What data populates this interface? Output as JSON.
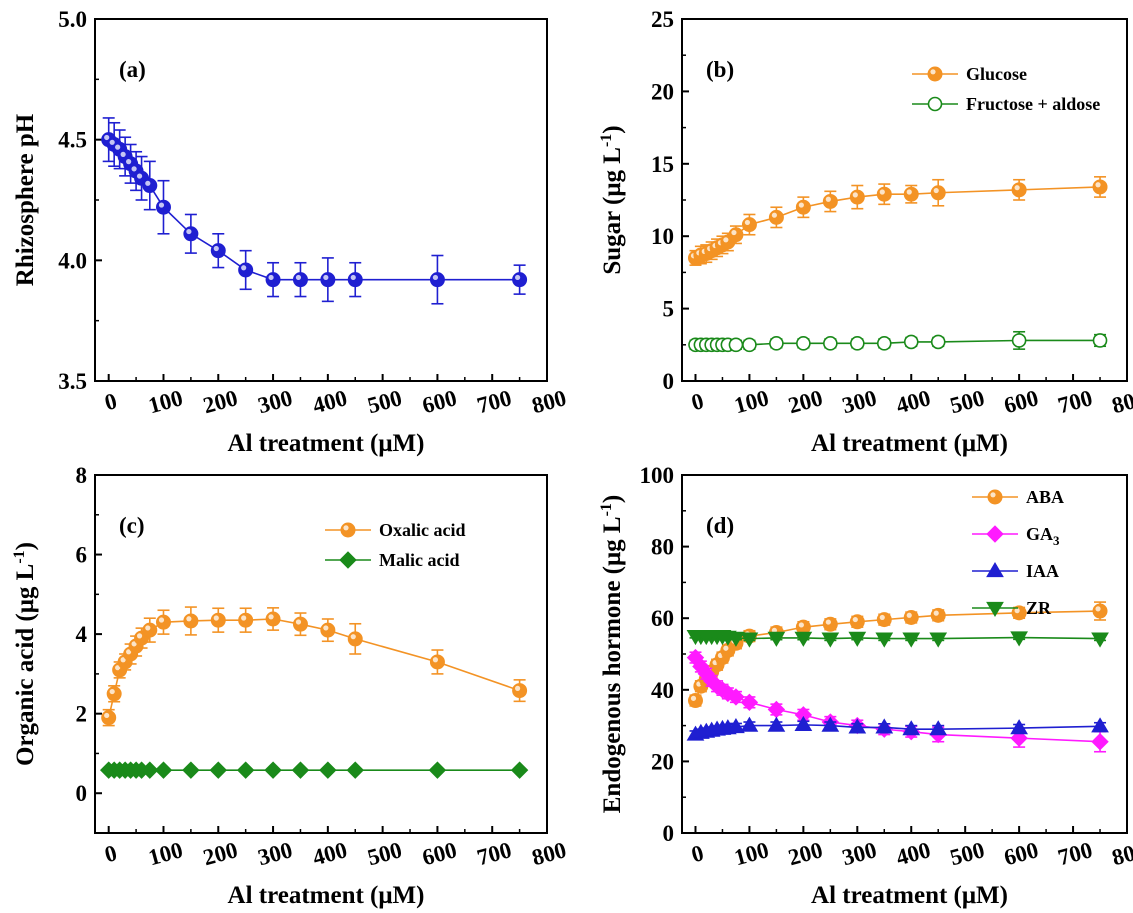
{
  "chart_data": [
    {
      "id": "a",
      "type": "line",
      "panel_label": "(a)",
      "xlabel": "Al treatment (μM)",
      "ylabel": "Rhizosphere pH",
      "ylabel_sup": "",
      "ylabel_tail": "",
      "xlim": [
        -25,
        800
      ],
      "ylim": [
        3.5,
        5.0
      ],
      "xticks": [
        0,
        100,
        200,
        300,
        400,
        500,
        600,
        700,
        800
      ],
      "yticks": [
        3.5,
        4.0,
        4.5,
        5.0
      ],
      "ytick_labels": [
        "3.5",
        "4.0",
        "4.5",
        "5.0"
      ],
      "legend_position": "none",
      "series": [
        {
          "color": "#1f1fd1",
          "marker": "circle-filled",
          "x": [
            0,
            10,
            20,
            30,
            40,
            50,
            60,
            75,
            100,
            150,
            200,
            250,
            300,
            350,
            400,
            450,
            600,
            750
          ],
          "y": [
            4.5,
            4.48,
            4.46,
            4.43,
            4.4,
            4.37,
            4.34,
            4.31,
            4.22,
            4.11,
            4.04,
            3.96,
            3.92,
            3.92,
            3.92,
            3.92,
            3.92,
            3.92
          ],
          "err": [
            0.09,
            0.09,
            0.08,
            0.08,
            0.08,
            0.08,
            0.09,
            0.1,
            0.11,
            0.08,
            0.07,
            0.08,
            0.07,
            0.07,
            0.09,
            0.07,
            0.1,
            0.06
          ]
        }
      ]
    },
    {
      "id": "b",
      "type": "line",
      "panel_label": "(b)",
      "xlabel": "Al treatment (μM)",
      "ylabel": "Sugar (μg L",
      "ylabel_sup": "-1",
      "ylabel_tail": ")",
      "xlim": [
        -25,
        800
      ],
      "ylim": [
        0,
        25
      ],
      "xticks": [
        0,
        100,
        200,
        300,
        400,
        500,
        600,
        700,
        800
      ],
      "yticks": [
        0,
        5,
        10,
        15,
        20,
        25
      ],
      "ytick_labels": [
        "0",
        "5",
        "10",
        "15",
        "20",
        "25"
      ],
      "legend_position": "top-right",
      "series": [
        {
          "name": "Glucose",
          "color": "#f39325",
          "marker": "circle-filled",
          "x": [
            0,
            10,
            20,
            30,
            40,
            50,
            60,
            75,
            100,
            150,
            200,
            250,
            300,
            350,
            400,
            450,
            600,
            750
          ],
          "y": [
            8.5,
            8.7,
            8.8,
            9.0,
            9.2,
            9.4,
            9.6,
            10.1,
            10.8,
            11.3,
            12.0,
            12.4,
            12.7,
            12.9,
            12.9,
            13.0,
            13.2,
            13.4
          ],
          "err": [
            0.5,
            0.6,
            0.6,
            0.6,
            0.6,
            0.6,
            0.6,
            0.6,
            0.7,
            0.7,
            0.7,
            0.7,
            0.8,
            0.7,
            0.6,
            0.9,
            0.7,
            0.7
          ]
        },
        {
          "name": "Fructose + aldose",
          "color": "#1a8a1a",
          "marker": "circle-open",
          "x": [
            0,
            10,
            20,
            30,
            40,
            50,
            60,
            75,
            100,
            150,
            200,
            250,
            300,
            350,
            400,
            450,
            600,
            750
          ],
          "y": [
            2.5,
            2.5,
            2.5,
            2.5,
            2.5,
            2.5,
            2.5,
            2.5,
            2.5,
            2.6,
            2.6,
            2.6,
            2.6,
            2.6,
            2.7,
            2.7,
            2.8,
            2.8
          ],
          "err": [
            0.3,
            0.3,
            0.3,
            0.3,
            0.3,
            0.3,
            0.3,
            0.3,
            0.3,
            0.3,
            0.3,
            0.3,
            0.3,
            0.3,
            0.3,
            0.3,
            0.6,
            0.4
          ]
        }
      ]
    },
    {
      "id": "c",
      "type": "line",
      "panel_label": "(c)",
      "xlabel": "Al treatment  (μM)",
      "ylabel": "Organic acid (μg L",
      "ylabel_sup": "-1",
      "ylabel_tail": ")",
      "xlim": [
        -25,
        800
      ],
      "ylim": [
        -1,
        8
      ],
      "xticks": [
        0,
        100,
        200,
        300,
        400,
        500,
        600,
        700,
        800
      ],
      "yticks": [
        0,
        2,
        4,
        6,
        8
      ],
      "ytick_labels": [
        "0",
        "2",
        "4",
        "6",
        "8"
      ],
      "legend_position": "top-right",
      "series": [
        {
          "name": "Oxalic acid",
          "color": "#f39325",
          "marker": "circle-filled",
          "x": [
            0,
            10,
            20,
            30,
            40,
            50,
            60,
            75,
            100,
            150,
            200,
            250,
            300,
            350,
            400,
            450,
            600,
            750
          ],
          "y": [
            1.9,
            2.5,
            3.1,
            3.3,
            3.5,
            3.7,
            3.9,
            4.1,
            4.3,
            4.33,
            4.35,
            4.35,
            4.38,
            4.25,
            4.1,
            3.88,
            3.3,
            2.58
          ],
          "err": [
            0.2,
            0.2,
            0.2,
            0.2,
            0.25,
            0.25,
            0.25,
            0.3,
            0.3,
            0.35,
            0.3,
            0.3,
            0.28,
            0.28,
            0.28,
            0.38,
            0.3,
            0.27
          ]
        },
        {
          "name": "Malic acid",
          "color": "#1a8a1a",
          "marker": "diamond-filled",
          "x": [
            0,
            10,
            20,
            30,
            40,
            50,
            60,
            75,
            100,
            150,
            200,
            250,
            300,
            350,
            400,
            450,
            600,
            750
          ],
          "y": [
            0.58,
            0.58,
            0.58,
            0.58,
            0.58,
            0.58,
            0.58,
            0.58,
            0.58,
            0.58,
            0.58,
            0.58,
            0.58,
            0.58,
            0.58,
            0.58,
            0.58,
            0.58
          ],
          "err": [
            0.03,
            0.03,
            0.03,
            0.03,
            0.03,
            0.03,
            0.03,
            0.03,
            0.03,
            0.03,
            0.03,
            0.03,
            0.03,
            0.03,
            0.03,
            0.03,
            0.03,
            0.03
          ]
        }
      ]
    },
    {
      "id": "d",
      "type": "line",
      "panel_label": "(d)",
      "xlabel": "Al treatment (μM)",
      "ylabel": "Endogenous hormone (μg L",
      "ylabel_sup": "-1",
      "ylabel_tail": ")",
      "xlim": [
        -25,
        800
      ],
      "ylim": [
        0,
        100
      ],
      "xticks": [
        0,
        100,
        200,
        300,
        400,
        500,
        600,
        700,
        800
      ],
      "yticks": [
        0,
        20,
        40,
        60,
        80,
        100
      ],
      "ytick_labels": [
        "0",
        "20",
        "40",
        "60",
        "80",
        "100"
      ],
      "legend_position": "top-right",
      "series": [
        {
          "name": "ABA",
          "name_sub": "",
          "color": "#f39325",
          "marker": "circle-filled",
          "x": [
            0,
            10,
            20,
            30,
            40,
            50,
            60,
            75,
            100,
            150,
            200,
            250,
            300,
            350,
            400,
            450,
            600,
            750
          ],
          "y": [
            37,
            41,
            43,
            45,
            47,
            49,
            51,
            53,
            55,
            56,
            57.5,
            58.3,
            59,
            59.6,
            60.2,
            60.8,
            61.5,
            62
          ],
          "err": [
            1.5,
            1.5,
            1.5,
            1.5,
            1.5,
            1.5,
            1.5,
            1.5,
            1.5,
            1.5,
            1.5,
            1.5,
            1.5,
            1.5,
            1.5,
            1.5,
            1.5,
            2.5
          ]
        },
        {
          "name": "GA",
          "name_sub": "3",
          "color": "#ff1aff",
          "marker": "diamond-filled",
          "x": [
            0,
            10,
            20,
            30,
            40,
            50,
            60,
            75,
            100,
            150,
            200,
            250,
            300,
            350,
            400,
            450,
            600,
            750
          ],
          "y": [
            49,
            46.5,
            44.5,
            42.5,
            41,
            40,
            39,
            38,
            36.5,
            34.5,
            33,
            31,
            30,
            29,
            28.3,
            27.5,
            26.5,
            25.5
          ],
          "err": [
            1.5,
            1.5,
            1.5,
            1.5,
            1.5,
            1.5,
            1.5,
            1.5,
            1.5,
            1.5,
            1.5,
            1.5,
            1.5,
            1.5,
            1.5,
            2.0,
            2.5,
            2.8
          ]
        },
        {
          "name": "IAA",
          "name_sub": "",
          "color": "#1f1fd1",
          "marker": "triangle-up-filled",
          "x": [
            0,
            10,
            20,
            30,
            40,
            50,
            60,
            75,
            100,
            150,
            200,
            250,
            300,
            350,
            400,
            450,
            600,
            750
          ],
          "y": [
            27.5,
            28,
            28.3,
            28.6,
            28.9,
            29.1,
            29.3,
            29.6,
            30,
            30,
            30.2,
            30,
            29.5,
            29.5,
            29,
            29,
            29.3,
            29.8
          ],
          "err": [
            1,
            1,
            1,
            1,
            1,
            1,
            1,
            1,
            1,
            1,
            1,
            1,
            1,
            1,
            1,
            1,
            1,
            1
          ]
        },
        {
          "name": "ZR",
          "name_sub": "",
          "color": "#1a8a1a",
          "marker": "triangle-down-filled",
          "x": [
            0,
            10,
            20,
            30,
            40,
            50,
            60,
            75,
            100,
            150,
            200,
            250,
            300,
            350,
            400,
            450,
            600,
            750
          ],
          "y": [
            55,
            55,
            55,
            55,
            55,
            55,
            54.8,
            54.5,
            54.3,
            54.5,
            54.5,
            54.3,
            54.5,
            54.3,
            54.3,
            54.3,
            54.6,
            54.3
          ],
          "err": [
            0.5,
            0.5,
            0.5,
            0.5,
            0.5,
            0.5,
            0.5,
            0.5,
            0.5,
            0.5,
            0.5,
            0.5,
            0.5,
            0.5,
            0.5,
            0.5,
            0.5,
            0.5
          ]
        }
      ]
    }
  ]
}
